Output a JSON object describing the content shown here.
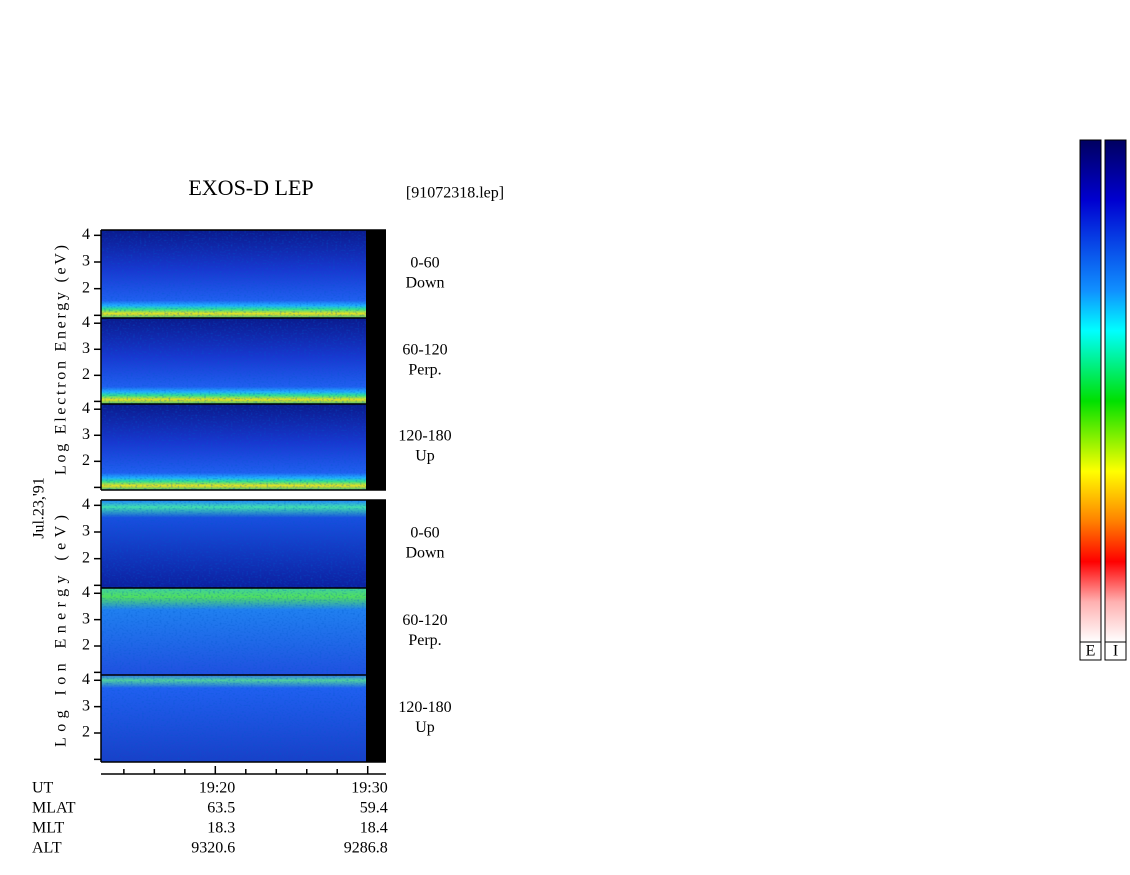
{
  "title": "EXOS-D LEP",
  "file_label": "[91072318.lep]",
  "date_label": "Jul.23,'91",
  "chart_data": {
    "type": "spectrogram",
    "ylim": [
      0.9,
      4.2
    ],
    "yticks": [
      2,
      3,
      4
    ],
    "minor_yticks": [
      1
    ],
    "xlim": [
      1152.5,
      1171.2
    ],
    "xticks": [
      {
        "value": 1160,
        "label": "19:20"
      },
      {
        "value": 1170,
        "label": "19:30"
      }
    ],
    "minor_xticks": [
      1154,
      1156,
      1158,
      1162,
      1164,
      1166,
      1168
    ],
    "groups": [
      {
        "ylabel": "Log Electron Energy (eV)",
        "panels": [
          {
            "label": [
              "0-60",
              "Down"
            ]
          },
          {
            "label": [
              "60-120",
              "Perp."
            ]
          },
          {
            "label": [
              "120-180",
              "Up"
            ]
          }
        ]
      },
      {
        "ylabel": "Log Ion Energy (eV)",
        "panels": [
          {
            "label": [
              "0-60",
              "Down"
            ]
          },
          {
            "label": [
              "60-120",
              "Perp."
            ]
          },
          {
            "label": [
              "120-180",
              "Up"
            ]
          }
        ]
      }
    ],
    "colorbar_labels": [
      "E",
      "I"
    ]
  },
  "ephemeris": {
    "rows": [
      {
        "label": "UT"
      },
      {
        "label": "MLAT",
        "values": [
          "63.5",
          "59.4"
        ]
      },
      {
        "label": "MLT",
        "values": [
          "18.3",
          "18.4"
        ]
      },
      {
        "label": "ALT",
        "values": [
          "9320.6",
          "9286.8"
        ]
      }
    ]
  }
}
